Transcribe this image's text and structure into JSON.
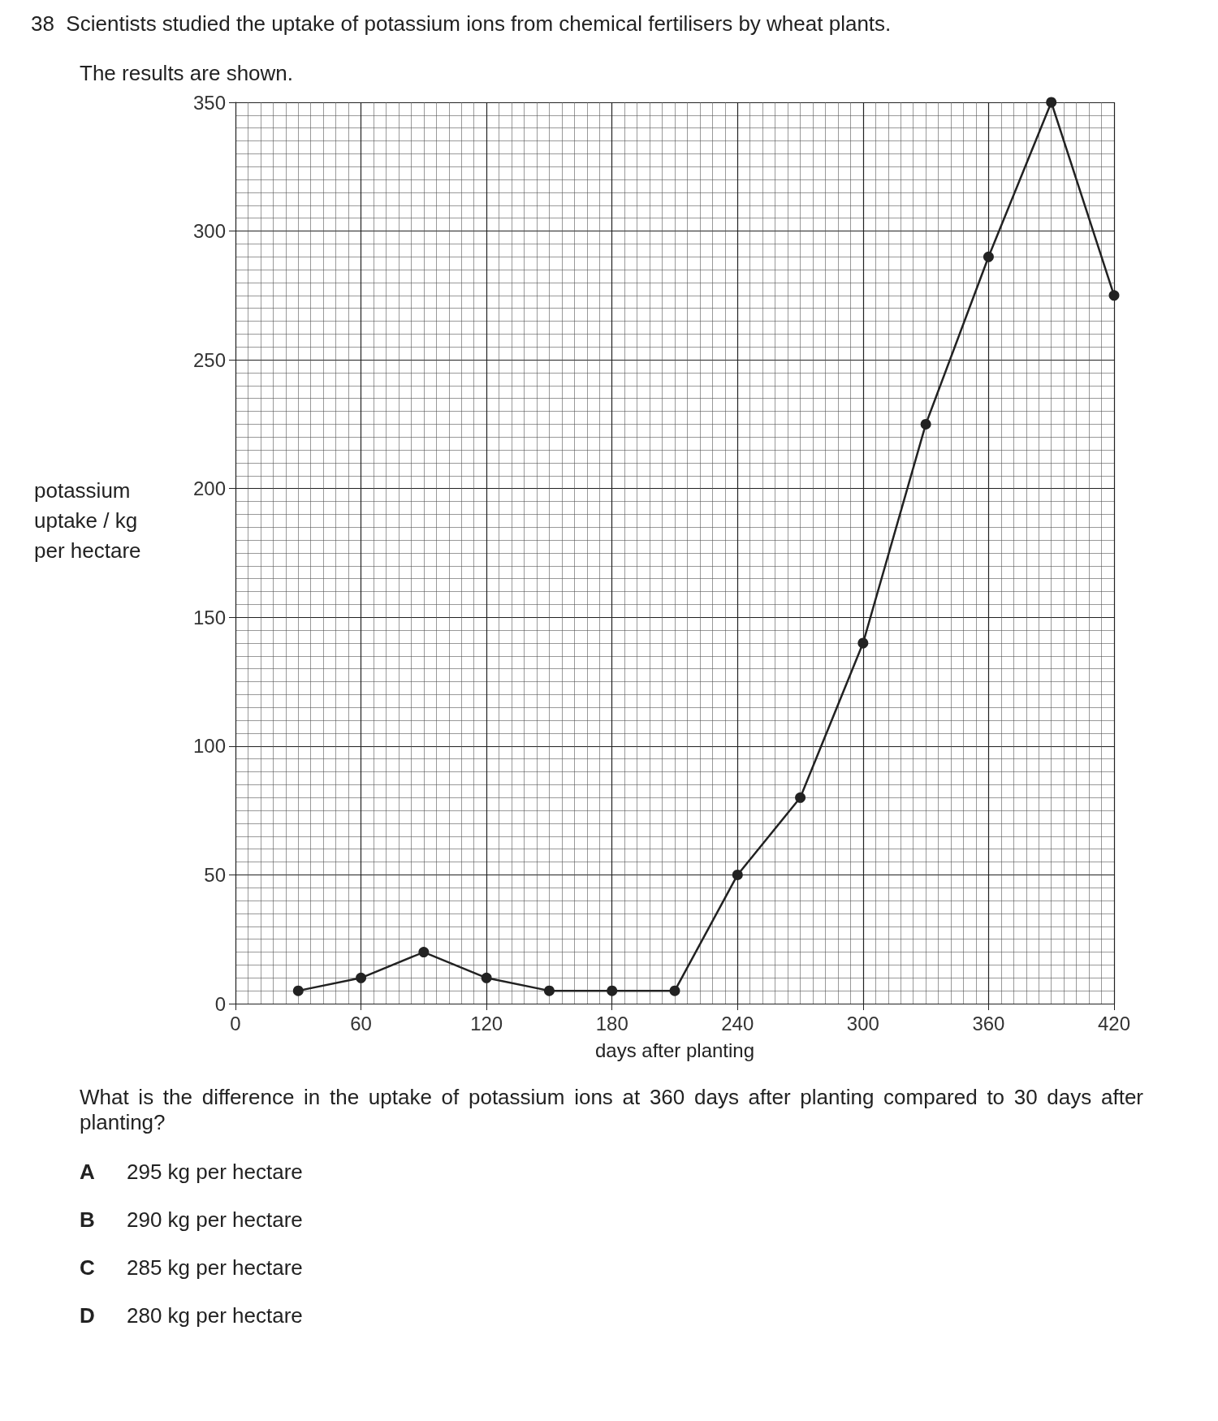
{
  "chart_data": {
    "type": "line",
    "title": "38  Scientists studied the uptake of potassium ions from chemical fertilisers by wheat plants.",
    "subtitle": "The results are shown.",
    "xlabel": "days after planting",
    "ylabel": "potassium uptake / kg per hectare",
    "x": [
      30,
      60,
      90,
      120,
      150,
      180,
      210,
      240,
      270,
      300,
      330,
      360,
      390,
      420
    ],
    "values": [
      5,
      10,
      20,
      10,
      5,
      5,
      5,
      50,
      80,
      140,
      225,
      290,
      350,
      275
    ],
    "color": "#222222",
    "marker": "circle",
    "line_style": "solid",
    "grid": true,
    "xlim": [
      0,
      420
    ],
    "xticks": [
      0,
      60,
      120,
      180,
      240,
      300,
      360,
      420
    ],
    "ylim": [
      0,
      350
    ],
    "yticks": [
      0,
      50,
      100,
      150,
      200,
      250,
      300,
      350
    ],
    "annotations": [
      "What is the difference in the uptake of potassium ions at 360 days after planting compared to 30 days after planting?",
      "A 295 kg per hectare",
      "B 290 kg per hectare",
      "C 285 kg per hectare",
      "D 280 kg per hectare"
    ]
  }
}
